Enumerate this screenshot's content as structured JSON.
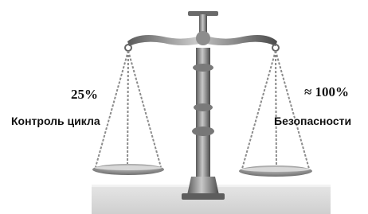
{
  "left": {
    "value": "25%",
    "label": "Контроль цикла"
  },
  "right": {
    "value": "≈ 100%",
    "label": "Безопасности"
  }
}
